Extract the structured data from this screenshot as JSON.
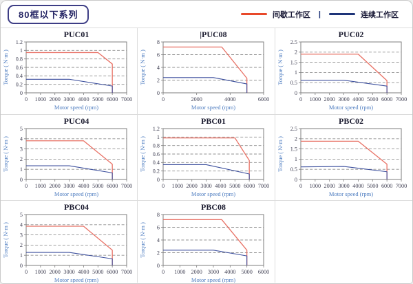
{
  "header": {
    "badge": "80框以下系列"
  },
  "legend": {
    "separator": "|",
    "items": [
      {
        "label": "间歇工作区",
        "color": "#e8492a"
      },
      {
        "label": "连续工作区",
        "color": "#1e3478"
      }
    ]
  },
  "axis": {
    "x_label": "Motor speed (rpm)",
    "y_label": "Torque ( N·m )"
  },
  "colors": {
    "intermittent_curve": "#e87064",
    "continuous_curve": "#3c4f9d",
    "grid_dash": "#8f8f8f",
    "plot_border": "#7d7d7d",
    "tick_text": "#3f3f52",
    "axis_label": "#4a7abf",
    "title_text": "#1c1c30"
  },
  "chart_data": [
    {
      "type": "line",
      "title": "PUC01",
      "title_bar": false,
      "xlabel": "Motor speed (rpm)",
      "ylabel": "Torque ( N·m )",
      "xlim": [
        0,
        7000
      ],
      "xticks": [
        0,
        1000,
        2000,
        3000,
        4000,
        5000,
        6000,
        7000
      ],
      "ylim": [
        0,
        1.2
      ],
      "yticks": [
        0,
        0.2,
        0.4,
        0.6,
        0.8,
        1,
        1.2
      ],
      "series": [
        {
          "name": "间歇工作区",
          "points": [
            [
              0,
              0.95
            ],
            [
              5000,
              0.95
            ],
            [
              6000,
              0.68
            ],
            [
              6000,
              0
            ]
          ]
        },
        {
          "name": "连续工作区",
          "points": [
            [
              0,
              0.32
            ],
            [
              3000,
              0.32
            ],
            [
              6000,
              0.16
            ],
            [
              6000,
              0
            ]
          ]
        }
      ]
    },
    {
      "type": "line",
      "title": "PUC08",
      "title_bar": true,
      "xlabel": "Motor speed (rpm)",
      "ylabel": "Torque ( N·m )",
      "xlim": [
        0,
        6000
      ],
      "xticks": [
        0,
        2000,
        4000,
        6000
      ],
      "ylim": [
        0,
        8
      ],
      "yticks": [
        0,
        2,
        4,
        6,
        8
      ],
      "series": [
        {
          "name": "间歇工作区",
          "points": [
            [
              0,
              7.2
            ],
            [
              3500,
              7.2
            ],
            [
              5000,
              2.3
            ],
            [
              5000,
              0
            ]
          ]
        },
        {
          "name": "连续工作区",
          "points": [
            [
              0,
              2.4
            ],
            [
              3000,
              2.4
            ],
            [
              5000,
              1.4
            ],
            [
              5000,
              0
            ]
          ]
        }
      ]
    },
    {
      "type": "line",
      "title": "PUC02",
      "title_bar": false,
      "xlabel": "Motor speed (rpm)",
      "ylabel": "Torque ( N·m )",
      "xlim": [
        0,
        7000
      ],
      "xticks": [
        0,
        1000,
        2000,
        3000,
        4000,
        5000,
        6000,
        7000
      ],
      "ylim": [
        0,
        2.5
      ],
      "yticks": [
        0,
        0.5,
        1,
        1.5,
        2,
        2.5
      ],
      "series": [
        {
          "name": "间歇工作区",
          "points": [
            [
              0,
              1.9
            ],
            [
              4000,
              1.9
            ],
            [
              6000,
              0.6
            ],
            [
              6000,
              0
            ]
          ]
        },
        {
          "name": "连续工作区",
          "points": [
            [
              0,
              0.62
            ],
            [
              3000,
              0.62
            ],
            [
              6000,
              0.33
            ],
            [
              6000,
              0
            ]
          ]
        }
      ]
    },
    {
      "type": "line",
      "title": "PUC04",
      "title_bar": false,
      "xlabel": "Motor speed (rpm)",
      "ylabel": "Torque ( N·m )",
      "xlim": [
        0,
        7000
      ],
      "xticks": [
        0,
        1000,
        2000,
        3000,
        4000,
        5000,
        6000,
        7000
      ],
      "ylim": [
        0,
        5
      ],
      "yticks": [
        0,
        1,
        2,
        3,
        4,
        5
      ],
      "series": [
        {
          "name": "间歇工作区",
          "points": [
            [
              0,
              3.8
            ],
            [
              4000,
              3.8
            ],
            [
              6000,
              1.5
            ],
            [
              6000,
              0
            ]
          ]
        },
        {
          "name": "连续工作区",
          "points": [
            [
              0,
              1.35
            ],
            [
              3000,
              1.35
            ],
            [
              6000,
              0.65
            ],
            [
              6000,
              0
            ]
          ]
        }
      ]
    },
    {
      "type": "line",
      "title": "PBC01",
      "title_bar": false,
      "xlabel": "Motor speed (rpm)",
      "ylabel": "Torque ( N·m )",
      "xlim": [
        0,
        7000
      ],
      "xticks": [
        0,
        1000,
        2000,
        3000,
        4000,
        5000,
        6000,
        7000
      ],
      "ylim": [
        0,
        1.2
      ],
      "yticks": [
        0,
        0.2,
        0.4,
        0.6,
        0.8,
        1,
        1.2
      ],
      "series": [
        {
          "name": "间歇工作区",
          "points": [
            [
              0,
              0.98
            ],
            [
              5000,
              0.98
            ],
            [
              6000,
              0.45
            ],
            [
              6000,
              0
            ]
          ]
        },
        {
          "name": "连续工作区",
          "points": [
            [
              0,
              0.35
            ],
            [
              3000,
              0.35
            ],
            [
              6000,
              0.13
            ],
            [
              6000,
              0
            ]
          ]
        }
      ]
    },
    {
      "type": "line",
      "title": "PBC02",
      "title_bar": false,
      "xlabel": "Motor speed (rpm)",
      "ylabel": "Torque ( N·m )",
      "xlim": [
        0,
        7000
      ],
      "xticks": [
        0,
        1000,
        2000,
        3000,
        4000,
        5000,
        6000,
        7000
      ],
      "ylim": [
        0,
        2.5
      ],
      "yticks": [
        0,
        0.5,
        1,
        1.5,
        2,
        2.5
      ],
      "series": [
        {
          "name": "间歇工作区",
          "points": [
            [
              0,
              1.88
            ],
            [
              4000,
              1.88
            ],
            [
              6000,
              0.75
            ],
            [
              6000,
              0
            ]
          ]
        },
        {
          "name": "连续工作区",
          "points": [
            [
              0,
              0.62
            ],
            [
              3000,
              0.64
            ],
            [
              6000,
              0.38
            ],
            [
              6000,
              0
            ]
          ]
        }
      ]
    },
    {
      "type": "line",
      "title": "PBC04",
      "title_bar": false,
      "xlabel": "Motor speed (rpm)",
      "ylabel": "Torque ( N·m )",
      "xlim": [
        0,
        7000
      ],
      "xticks": [
        0,
        1000,
        2000,
        3000,
        4000,
        5000,
        6000,
        7000
      ],
      "ylim": [
        0,
        5
      ],
      "yticks": [
        0,
        1,
        2,
        3,
        4,
        5
      ],
      "series": [
        {
          "name": "间歇工作区",
          "points": [
            [
              0,
              3.85
            ],
            [
              4000,
              3.85
            ],
            [
              6000,
              1.5
            ],
            [
              6000,
              0
            ]
          ]
        },
        {
          "name": "连续工作区",
          "points": [
            [
              0,
              1.28
            ],
            [
              3000,
              1.28
            ],
            [
              6000,
              0.65
            ],
            [
              6000,
              0
            ]
          ]
        }
      ]
    },
    {
      "type": "line",
      "title": "PBC08",
      "title_bar": false,
      "xlabel": "Motor speed (rpm)",
      "ylabel": "Torque ( N·m )",
      "xlim": [
        0,
        6000
      ],
      "xticks": [
        0,
        1000,
        2000,
        3000,
        4000,
        5000,
        6000
      ],
      "ylim": [
        0,
        8
      ],
      "yticks": [
        0,
        2,
        4,
        6,
        8
      ],
      "series": [
        {
          "name": "间歇工作区",
          "points": [
            [
              0,
              7.2
            ],
            [
              3500,
              7.2
            ],
            [
              5000,
              2.4
            ],
            [
              5000,
              0
            ]
          ]
        },
        {
          "name": "连续工作区",
          "points": [
            [
              0,
              2.4
            ],
            [
              3000,
              2.4
            ],
            [
              5000,
              1.5
            ],
            [
              5000,
              0
            ]
          ]
        }
      ]
    }
  ]
}
